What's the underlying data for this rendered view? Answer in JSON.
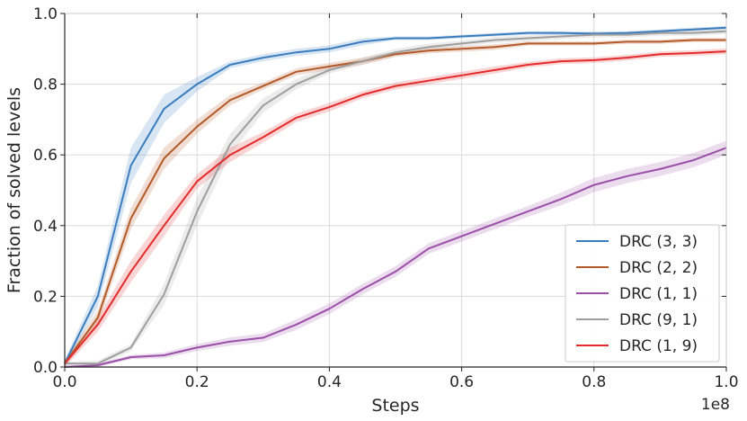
{
  "chart_data": {
    "type": "line",
    "xlabel": "Steps",
    "ylabel": "Fraction of solved levels",
    "x_multiplier_label": "1e8",
    "xlim": [
      0.0,
      1.0
    ],
    "ylim": [
      0.0,
      1.0
    ],
    "xticks": [
      "0.0",
      "0.2",
      "0.4",
      "0.6",
      "0.8",
      "1.0"
    ],
    "yticks": [
      "0.0",
      "0.2",
      "0.4",
      "0.6",
      "0.8",
      "1.0"
    ],
    "grid": true,
    "legend_position": "lower-right",
    "x": [
      0.0,
      0.05,
      0.1,
      0.15,
      0.2,
      0.25,
      0.3,
      0.35,
      0.4,
      0.45,
      0.5,
      0.55,
      0.6,
      0.65,
      0.7,
      0.75,
      0.8,
      0.85,
      0.9,
      0.95,
      1.0
    ],
    "series": [
      {
        "name": "DRC (3, 3)",
        "color": "#3a7dbf",
        "values": [
          0.01,
          0.2,
          0.57,
          0.73,
          0.8,
          0.855,
          0.875,
          0.89,
          0.9,
          0.92,
          0.93,
          0.93,
          0.935,
          0.94,
          0.945,
          0.945,
          0.943,
          0.945,
          0.95,
          0.955,
          0.96
        ],
        "band": [
          0.01,
          0.03,
          0.05,
          0.04,
          0.02,
          0.01,
          0.01,
          0.01,
          0.01,
          0.01,
          0.005,
          0.005,
          0.005,
          0.005,
          0.005,
          0.005,
          0.005,
          0.005,
          0.005,
          0.005,
          0.005
        ]
      },
      {
        "name": "DRC (2, 2)",
        "color": "#b35a28",
        "values": [
          0.01,
          0.14,
          0.42,
          0.59,
          0.68,
          0.755,
          0.795,
          0.835,
          0.85,
          0.865,
          0.885,
          0.895,
          0.9,
          0.905,
          0.915,
          0.915,
          0.915,
          0.92,
          0.92,
          0.925,
          0.925
        ],
        "band": [
          0.01,
          0.02,
          0.03,
          0.03,
          0.02,
          0.015,
          0.01,
          0.01,
          0.01,
          0.01,
          0.008,
          0.008,
          0.008,
          0.008,
          0.006,
          0.006,
          0.006,
          0.006,
          0.006,
          0.006,
          0.006
        ]
      },
      {
        "name": "DRC (1, 1)",
        "color": "#9b4fa8",
        "values": [
          0.0,
          0.005,
          0.028,
          0.033,
          0.055,
          0.072,
          0.083,
          0.12,
          0.165,
          0.22,
          0.27,
          0.335,
          0.37,
          0.405,
          0.44,
          0.475,
          0.515,
          0.54,
          0.56,
          0.585,
          0.62
        ],
        "band": [
          0.003,
          0.005,
          0.006,
          0.008,
          0.01,
          0.012,
          0.012,
          0.015,
          0.015,
          0.015,
          0.015,
          0.015,
          0.015,
          0.015,
          0.015,
          0.018,
          0.02,
          0.02,
          0.02,
          0.02,
          0.02
        ]
      },
      {
        "name": "DRC (9, 1)",
        "color": "#9e9e9e",
        "values": [
          0.01,
          0.01,
          0.055,
          0.205,
          0.44,
          0.63,
          0.74,
          0.8,
          0.84,
          0.865,
          0.89,
          0.905,
          0.915,
          0.925,
          0.93,
          0.935,
          0.94,
          0.94,
          0.945,
          0.945,
          0.95
        ],
        "band": [
          0.005,
          0.008,
          0.01,
          0.03,
          0.04,
          0.03,
          0.02,
          0.015,
          0.01,
          0.01,
          0.01,
          0.01,
          0.008,
          0.008,
          0.008,
          0.008,
          0.008,
          0.008,
          0.008,
          0.008,
          0.008
        ]
      },
      {
        "name": "DRC (1, 9)",
        "color": "#e32b2b",
        "values": [
          0.01,
          0.12,
          0.27,
          0.4,
          0.525,
          0.6,
          0.65,
          0.705,
          0.735,
          0.77,
          0.795,
          0.81,
          0.825,
          0.84,
          0.855,
          0.865,
          0.868,
          0.875,
          0.885,
          0.888,
          0.893
        ],
        "band": [
          0.01,
          0.02,
          0.03,
          0.03,
          0.02,
          0.02,
          0.015,
          0.012,
          0.012,
          0.01,
          0.01,
          0.01,
          0.01,
          0.01,
          0.008,
          0.008,
          0.008,
          0.008,
          0.008,
          0.008,
          0.008
        ]
      }
    ]
  }
}
